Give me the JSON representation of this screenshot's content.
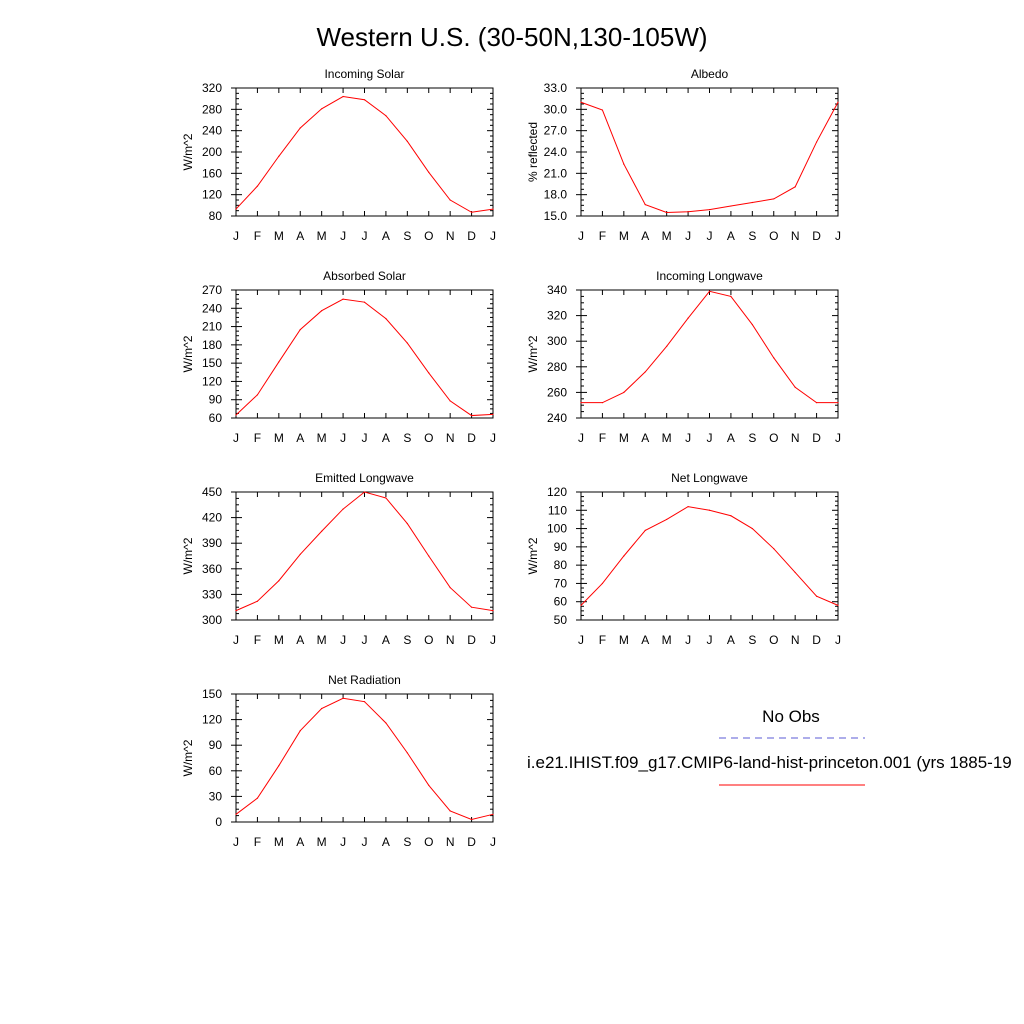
{
  "page_title": "Western U.S. (30-50N,130-105W)",
  "legend": {
    "obs_label": "No Obs",
    "obs_color": "#5b5bd6",
    "model_label": "i.e21.IHIST.f09_g17.CMIP6-land-hist-princeton.001 (yrs 1885-19",
    "model_color": "#ff0000"
  },
  "chart_data": [
    {
      "type": "line",
      "title": "Incoming Solar",
      "ylabel": "W/m^2",
      "categories": [
        "J",
        "F",
        "M",
        "A",
        "M",
        "J",
        "J",
        "A",
        "S",
        "O",
        "N",
        "D",
        "J"
      ],
      "ylim": [
        80,
        320
      ],
      "yticks": [
        "320",
        "280",
        "240",
        "200",
        "160",
        "120",
        "80"
      ],
      "series": [
        {
          "values": [
            93,
            136,
            192,
            245,
            281,
            304,
            298,
            268,
            220,
            162,
            110,
            87,
            93
          ]
        }
      ]
    },
    {
      "type": "line",
      "title": "Albedo",
      "ylabel": "% reflected",
      "categories": [
        "J",
        "F",
        "M",
        "A",
        "M",
        "J",
        "J",
        "A",
        "S",
        "O",
        "N",
        "D",
        "J"
      ],
      "ylim": [
        15,
        33
      ],
      "yticks": [
        "33.0",
        "30.0",
        "27.0",
        "24.0",
        "21.0",
        "18.0",
        "15.0"
      ],
      "series": [
        {
          "values": [
            31.0,
            29.9,
            22.3,
            16.6,
            15.5,
            15.6,
            15.9,
            16.4,
            16.9,
            17.4,
            19.1,
            25.4,
            31.0
          ]
        }
      ]
    },
    {
      "type": "line",
      "title": "Absorbed Solar",
      "ylabel": "W/m^2",
      "categories": [
        "J",
        "F",
        "M",
        "A",
        "M",
        "J",
        "J",
        "A",
        "S",
        "O",
        "N",
        "D",
        "J"
      ],
      "ylim": [
        60,
        270
      ],
      "yticks": [
        "270",
        "240",
        "210",
        "180",
        "150",
        "120",
        "90",
        "60"
      ],
      "series": [
        {
          "values": [
            65,
            98,
            152,
            205,
            236,
            255,
            250,
            223,
            183,
            134,
            88,
            64,
            66
          ]
        }
      ]
    },
    {
      "type": "line",
      "title": "Incoming Longwave",
      "ylabel": "W/m^2",
      "categories": [
        "J",
        "F",
        "M",
        "A",
        "M",
        "J",
        "J",
        "A",
        "S",
        "O",
        "N",
        "D",
        "J"
      ],
      "ylim": [
        240,
        340
      ],
      "yticks": [
        "340",
        "320",
        "300",
        "280",
        "260",
        "240"
      ],
      "series": [
        {
          "values": [
            252,
            252,
            260,
            276,
            296,
            318,
            339,
            335,
            313,
            287,
            264,
            252,
            252
          ]
        }
      ]
    },
    {
      "type": "line",
      "title": "Emitted Longwave",
      "ylabel": "W/m^2",
      "categories": [
        "J",
        "F",
        "M",
        "A",
        "M",
        "J",
        "J",
        "A",
        "S",
        "O",
        "N",
        "D",
        "J"
      ],
      "ylim": [
        300,
        450
      ],
      "yticks": [
        "450",
        "420",
        "390",
        "360",
        "330",
        "300"
      ],
      "series": [
        {
          "values": [
            311,
            322,
            346,
            377,
            404,
            430,
            450,
            443,
            413,
            375,
            338,
            315,
            311
          ]
        }
      ]
    },
    {
      "type": "line",
      "title": "Net Longwave",
      "ylabel": "W/m^2",
      "categories": [
        "J",
        "F",
        "M",
        "A",
        "M",
        "J",
        "J",
        "A",
        "S",
        "O",
        "N",
        "D",
        "J"
      ],
      "ylim": [
        50,
        120
      ],
      "yticks": [
        "120",
        "110",
        "100",
        "90",
        "80",
        "70",
        "60",
        "50"
      ],
      "series": [
        {
          "values": [
            58,
            70,
            85,
            99,
            105,
            112,
            110,
            107,
            100,
            89,
            76,
            63,
            58
          ]
        }
      ]
    },
    {
      "type": "line",
      "title": "Net Radiation",
      "ylabel": "W/m^2",
      "categories": [
        "J",
        "F",
        "M",
        "A",
        "M",
        "J",
        "J",
        "A",
        "S",
        "O",
        "N",
        "D",
        "J"
      ],
      "ylim": [
        0,
        150
      ],
      "yticks": [
        "150",
        "120",
        "90",
        "60",
        "30",
        "0"
      ],
      "series": [
        {
          "values": [
            9,
            28,
            66,
            107,
            133,
            145,
            141,
            116,
            81,
            43,
            13,
            3,
            9
          ]
        }
      ]
    }
  ]
}
